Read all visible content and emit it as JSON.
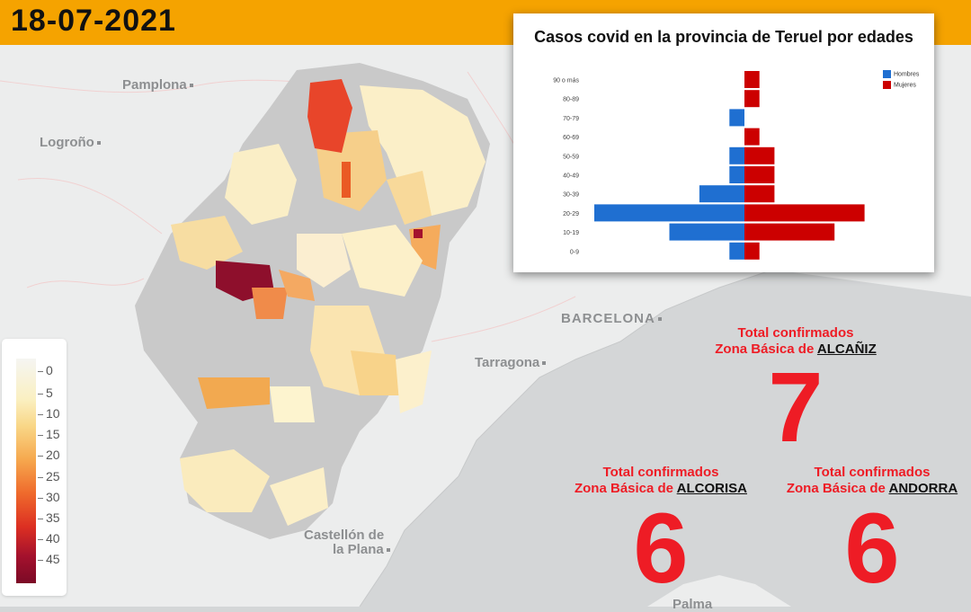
{
  "header": {
    "date": "18-07-2021"
  },
  "map": {
    "cities": [
      {
        "name": "Pamplona"
      },
      {
        "name": "Logroño"
      },
      {
        "name": "BARCELONA"
      },
      {
        "name": "Tarragona"
      },
      {
        "name": "Castellón de"
      },
      {
        "name": "la Plana"
      },
      {
        "name": "Palma"
      }
    ]
  },
  "color_scale": {
    "ticks": [
      "0",
      "5",
      "10",
      "15",
      "20",
      "25",
      "30",
      "35",
      "40",
      "45"
    ],
    "colors": [
      "#f5f5f2",
      "#faf0c2",
      "#f9d787",
      "#f6a84e",
      "#ef6a2c",
      "#dc2f22",
      "#a4112d",
      "#7b0a26"
    ]
  },
  "chart_data": {
    "type": "bar",
    "title": "Casos covid en la provincia de Teruel por edades",
    "categories": [
      "90 o más",
      "80-89",
      "70-79",
      "60-69",
      "50-59",
      "40-49",
      "30-39",
      "20-29",
      "10-19",
      "0-9"
    ],
    "series": [
      {
        "name": "Hombres",
        "color": "#1f6fd1",
        "values": [
          0,
          0,
          1,
          0,
          1,
          1,
          3,
          10,
          5,
          1
        ]
      },
      {
        "name": "Mujeres",
        "color": "#cc0000",
        "values": [
          1,
          1,
          0,
          1,
          2,
          2,
          2,
          8,
          6,
          1
        ]
      }
    ],
    "orientation": "horizontal-pyramid",
    "legend_position": "top-right"
  },
  "zones": [
    {
      "label": "Total confirmados",
      "prefix": "Zona Básica de",
      "name": "ALCAÑIZ",
      "total": "7"
    },
    {
      "label": "Total confirmados",
      "prefix": "Zona Básica de",
      "name": "ALCORISA",
      "total": "6"
    },
    {
      "label": "Total confirmados",
      "prefix": "Zona Básica de",
      "name": "ANDORRA",
      "total": "6"
    }
  ]
}
